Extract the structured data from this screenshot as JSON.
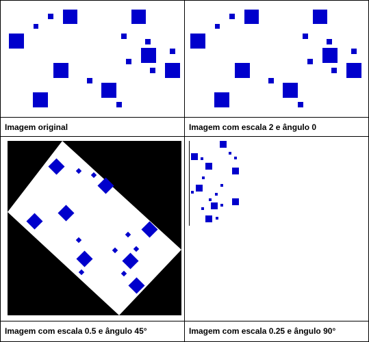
{
  "panels": [
    {
      "caption": "Imagem original"
    },
    {
      "caption": "Imagem com escala 2 e ângulo 0"
    },
    {
      "caption": "Imagem com escala 0.5 e ângulo 45°"
    },
    {
      "caption": "Imagem com escala 0.25 e ângulo 90°"
    }
  ],
  "colors": {
    "square": "#0000cc",
    "background": "#ffffff",
    "rotated_backdrop": "#000000",
    "border": "#000000"
  }
}
